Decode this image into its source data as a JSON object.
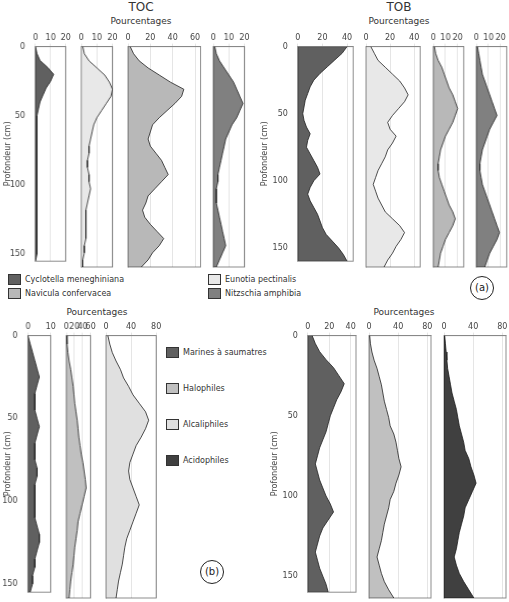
{
  "chart_data": [
    {
      "type": "area",
      "title": "TOC",
      "subtitle": "Pourcentages",
      "ylabel": "Profondeur (cm)",
      "y": [
        0,
        5,
        10,
        15,
        20,
        25,
        30,
        35,
        40,
        45,
        50,
        55,
        60,
        65,
        70,
        75,
        80,
        85,
        90,
        95,
        100,
        105,
        110,
        115,
        120,
        125,
        130,
        135,
        140,
        145,
        150,
        155
      ],
      "series": [
        {
          "name": "Cyclotella meneghiniana",
          "color": "#606060",
          "values": [
            0,
            1,
            3,
            8,
            12,
            10,
            7,
            5,
            3,
            2,
            1,
            1,
            1,
            1,
            1,
            1,
            1,
            1,
            1,
            1,
            1,
            1,
            1,
            1,
            1,
            1,
            1,
            1,
            1,
            1,
            1,
            0
          ]
        }
      ],
      "xlim": [
        0,
        20
      ],
      "xticks": [
        0,
        10,
        20
      ],
      "ylim": [
        155,
        0
      ],
      "yticks": [
        0,
        50,
        100,
        150
      ],
      "grid": true
    },
    {
      "type": "area",
      "y": [
        0,
        5,
        10,
        15,
        20,
        25,
        30,
        35,
        40,
        45,
        50,
        55,
        60,
        65,
        70,
        75,
        80,
        85,
        90,
        95,
        100,
        105,
        110,
        115,
        120,
        125,
        130,
        135,
        140,
        145,
        150,
        155
      ],
      "series": [
        {
          "name": "Eunotia pectinalis",
          "color": "#e8e8e8",
          "values": [
            1,
            2,
            5,
            10,
            15,
            18,
            20,
            19,
            16,
            13,
            10,
            8,
            7,
            6,
            5,
            5,
            4,
            4,
            5,
            5,
            6,
            5,
            4,
            3,
            3,
            3,
            3,
            3,
            2,
            2,
            1,
            1
          ]
        }
      ],
      "xlim": [
        0,
        20
      ],
      "xticks": [
        0,
        10,
        20
      ],
      "ylim": [
        155,
        0
      ],
      "tick_labels": "x",
      "grid": true
    },
    {
      "type": "area",
      "y": [
        0,
        5,
        10,
        15,
        20,
        25,
        30,
        35,
        40,
        45,
        50,
        55,
        60,
        65,
        70,
        75,
        80,
        85,
        90,
        95,
        100,
        105,
        110,
        115,
        120,
        125,
        130,
        135,
        140,
        145,
        150,
        155
      ],
      "series": [
        {
          "name": "Navicula confervacea",
          "color": "#b8b8b8",
          "values": [
            2,
            5,
            10,
            18,
            28,
            38,
            50,
            48,
            42,
            35,
            28,
            22,
            20,
            18,
            20,
            25,
            30,
            33,
            36,
            30,
            24,
            18,
            16,
            13,
            15,
            20,
            26,
            32,
            28,
            22,
            18,
            12
          ]
        }
      ],
      "xlim": [
        0,
        65
      ],
      "xticks": [
        0,
        20,
        40,
        60
      ],
      "ylim": [
        155,
        0
      ],
      "tick_labels": "x",
      "grid": true
    },
    {
      "type": "area",
      "y": [
        0,
        5,
        10,
        15,
        20,
        25,
        30,
        35,
        40,
        45,
        50,
        55,
        60,
        65,
        70,
        75,
        80,
        85,
        90,
        95,
        100,
        105,
        110,
        115,
        120,
        125,
        130,
        135,
        140,
        145,
        150,
        155
      ],
      "series": [
        {
          "name": "Nitzschia amphibia",
          "color": "#808080",
          "values": [
            1,
            2,
            4,
            7,
            10,
            13,
            15,
            17,
            19,
            17,
            15,
            12,
            10,
            8,
            7,
            6,
            5,
            4,
            3,
            3,
            2,
            2,
            2,
            3,
            4,
            5,
            6,
            7,
            8,
            6,
            4,
            2
          ]
        }
      ],
      "xlim": [
        0,
        20
      ],
      "xticks": [
        0,
        10,
        20
      ],
      "ylim": [
        155,
        0
      ],
      "tick_labels": "x",
      "grid": true
    },
    {
      "type": "area",
      "title": "TOB",
      "subtitle": "Pourcentages",
      "ylabel": "Profondeur (cm)",
      "y": [
        0,
        5,
        10,
        15,
        20,
        25,
        30,
        35,
        40,
        45,
        50,
        55,
        60,
        65,
        70,
        75,
        80,
        85,
        90,
        95,
        100,
        105,
        110,
        115,
        120,
        125,
        130,
        135,
        140,
        145,
        150,
        155,
        160
      ],
      "series": [
        {
          "name": "Cyclotella meneghiniana",
          "color": "#606060",
          "values": [
            40,
            36,
            30,
            24,
            18,
            13,
            10,
            8,
            6,
            5,
            4,
            5,
            7,
            10,
            8,
            7,
            10,
            13,
            16,
            18,
            13,
            10,
            8,
            10,
            13,
            16,
            18,
            20,
            23,
            28,
            33,
            37,
            40
          ]
        }
      ],
      "xlim": [
        0,
        45
      ],
      "xticks": [
        0,
        20,
        40
      ],
      "ylim": [
        160,
        0
      ],
      "yticks": [
        0,
        50,
        100,
        150
      ],
      "grid": true
    },
    {
      "type": "area",
      "y": [
        0,
        5,
        10,
        15,
        20,
        25,
        30,
        35,
        40,
        45,
        50,
        55,
        60,
        65,
        70,
        75,
        80,
        85,
        90,
        95,
        100,
        105,
        110,
        115,
        120,
        125,
        130,
        135,
        140,
        145,
        150,
        155,
        160
      ],
      "series": [
        {
          "name": "Eunotia pectinalis",
          "color": "#e8e8e8",
          "values": [
            4,
            7,
            10,
            16,
            22,
            28,
            32,
            35,
            32,
            27,
            22,
            18,
            20,
            25,
            22,
            18,
            16,
            13,
            10,
            8,
            6,
            8,
            10,
            13,
            16,
            22,
            28,
            32,
            29,
            25,
            22,
            18,
            15
          ]
        }
      ],
      "xlim": [
        0,
        45
      ],
      "xticks": [
        0,
        20,
        40
      ],
      "ylim": [
        160,
        0
      ],
      "tick_labels": "x",
      "grid": true
    },
    {
      "type": "area",
      "y": [
        0,
        5,
        10,
        15,
        20,
        25,
        30,
        35,
        40,
        45,
        50,
        55,
        60,
        65,
        70,
        75,
        80,
        85,
        90,
        95,
        100,
        105,
        110,
        115,
        120,
        125,
        130,
        135,
        140,
        145,
        150,
        155,
        160
      ],
      "series": [
        {
          "name": "Navicula confervacea",
          "color": "#b8b8b8",
          "values": [
            1,
            2,
            4,
            7,
            9,
            11,
            13,
            16,
            18,
            20,
            18,
            16,
            13,
            10,
            8,
            6,
            5,
            4,
            4,
            5,
            7,
            9,
            11,
            13,
            16,
            18,
            16,
            13,
            10,
            8,
            6,
            5,
            4
          ]
        }
      ],
      "xlim": [
        0,
        25
      ],
      "xticks": [
        0,
        10,
        20
      ],
      "ylim": [
        160,
        0
      ],
      "tick_labels": "x",
      "grid": true
    },
    {
      "type": "area",
      "annotations": [
        "(a)"
      ],
      "y": [
        0,
        5,
        10,
        15,
        20,
        25,
        30,
        35,
        40,
        45,
        50,
        55,
        60,
        65,
        70,
        75,
        80,
        85,
        90,
        95,
        100,
        105,
        110,
        115,
        120,
        125,
        130,
        135,
        140,
        145,
        150,
        155,
        160
      ],
      "series": [
        {
          "name": "Nitzschia amphibia",
          "color": "#808080",
          "values": [
            1,
            2,
            3,
            4,
            5,
            7,
            9,
            11,
            13,
            15,
            17,
            14,
            11,
            9,
            7,
            5,
            4,
            3,
            3,
            4,
            5,
            7,
            9,
            11,
            13,
            15,
            17,
            19,
            17,
            14,
            11,
            9,
            7
          ]
        }
      ],
      "xlim": [
        0,
        25
      ],
      "xticks": [
        0,
        10,
        20
      ],
      "ylim": [
        160,
        0
      ],
      "tick_labels": "x",
      "grid": true
    },
    {
      "type": "area",
      "subtitle": "Pourcentages",
      "ylabel": "Profondeur (cm)",
      "y": [
        0,
        5,
        10,
        15,
        20,
        25,
        30,
        35,
        40,
        45,
        50,
        55,
        60,
        65,
        70,
        75,
        80,
        85,
        90,
        95,
        100,
        105,
        110,
        115,
        120,
        125,
        130,
        135,
        140,
        145,
        150,
        155
      ],
      "series": [
        {
          "name": "Marines à saumatres",
          "color": "#606060",
          "values": [
            0,
            1,
            2,
            3,
            4,
            5,
            4,
            3,
            3,
            3,
            4,
            5,
            4,
            3,
            3,
            3,
            4,
            4,
            3,
            3,
            3,
            3,
            3,
            4,
            5,
            5,
            4,
            3,
            3,
            2,
            2,
            1
          ]
        }
      ],
      "xlim": [
        0,
        10
      ],
      "xticks": [
        0,
        10
      ],
      "ylim": [
        155,
        0
      ],
      "yticks": [
        0,
        50,
        100,
        150
      ],
      "grid": true
    },
    {
      "type": "area",
      "y": [
        0,
        5,
        10,
        15,
        20,
        25,
        30,
        35,
        40,
        45,
        50,
        55,
        60,
        65,
        70,
        75,
        80,
        85,
        90,
        95,
        100,
        105,
        110,
        115,
        120,
        125,
        130,
        135,
        140,
        145,
        150,
        155
      ],
      "series": [
        {
          "name": "Halophiles",
          "color": "#c0c0c0",
          "values": [
            1,
            2,
            4,
            7,
            11,
            14,
            17,
            19,
            21,
            24,
            27,
            29,
            31,
            34,
            37,
            41,
            44,
            47,
            49,
            44,
            39,
            34,
            29,
            27,
            24,
            21,
            19,
            17,
            14,
            11,
            9,
            7
          ]
        }
      ],
      "xlim": [
        0,
        60
      ],
      "xticks": [
        0,
        20,
        40,
        60
      ],
      "ylim": [
        155,
        0
      ],
      "tick_labels": "x",
      "grid": true
    },
    {
      "type": "area",
      "y": [
        0,
        5,
        10,
        15,
        20,
        25,
        30,
        35,
        40,
        45,
        50,
        55,
        60,
        65,
        70,
        75,
        80,
        85,
        90,
        95,
        100,
        105,
        110,
        115,
        120,
        125,
        130,
        135,
        140,
        145,
        150,
        155
      ],
      "series": [
        {
          "name": "Alcaliphiles",
          "color": "#e0e0e0",
          "values": [
            3,
            6,
            10,
            16,
            23,
            28,
            36,
            43,
            53,
            63,
            68,
            63,
            56,
            48,
            43,
            38,
            36,
            38,
            43,
            48,
            53,
            48,
            43,
            38,
            33,
            30,
            28,
            26,
            23,
            20,
            18,
            16
          ]
        }
      ],
      "xlim": [
        0,
        80
      ],
      "xticks": [
        0,
        40,
        80
      ],
      "ylim": [
        155,
        0
      ],
      "tick_labels": "x",
      "grid": true
    },
    {
      "type": "area",
      "subtitle": "Pourcentages",
      "ylabel": "Profondeur (cm)",
      "y": [
        0,
        5,
        10,
        15,
        20,
        25,
        30,
        35,
        40,
        45,
        50,
        55,
        60,
        65,
        70,
        75,
        80,
        85,
        90,
        95,
        100,
        105,
        110,
        115,
        120,
        125,
        130,
        135,
        140,
        145,
        150,
        155,
        160
      ],
      "series": [
        {
          "name": "Marines à saumatres",
          "color": "#606060",
          "values": [
            4,
            7,
            11,
            17,
            24,
            29,
            34,
            31,
            27,
            24,
            21,
            19,
            17,
            14,
            11,
            9,
            7,
            9,
            11,
            14,
            17,
            21,
            24,
            19,
            14,
            11,
            9,
            7,
            9,
            11,
            14,
            17,
            19
          ]
        }
      ],
      "xlim": [
        0,
        45
      ],
      "xticks": [
        0,
        20,
        40
      ],
      "ylim": [
        160,
        0
      ],
      "yticks": [
        0,
        50,
        100,
        150
      ],
      "grid": true
    },
    {
      "type": "area",
      "y": [
        0,
        5,
        10,
        15,
        20,
        25,
        30,
        35,
        40,
        45,
        50,
        55,
        60,
        65,
        70,
        75,
        80,
        85,
        90,
        95,
        100,
        105,
        110,
        115,
        120,
        125,
        130,
        135,
        140,
        145,
        150,
        155,
        160
      ],
      "series": [
        {
          "name": "Halophiles",
          "color": "#c0c0c0",
          "values": [
            1,
            2,
            4,
            7,
            11,
            14,
            17,
            19,
            21,
            24,
            27,
            29,
            34,
            37,
            39,
            41,
            44,
            41,
            37,
            34,
            29,
            27,
            24,
            21,
            19,
            17,
            14,
            11,
            14,
            17,
            21,
            27,
            34
          ]
        }
      ],
      "xlim": [
        0,
        85
      ],
      "xticks": [
        0,
        40,
        80
      ],
      "ylim": [
        160,
        0
      ],
      "tick_labels": "x",
      "grid": true
    },
    {
      "type": "area",
      "annotations": [
        "(b)"
      ],
      "y": [
        0,
        5,
        10,
        15,
        20,
        25,
        30,
        35,
        40,
        45,
        50,
        55,
        60,
        65,
        70,
        75,
        80,
        85,
        90,
        95,
        100,
        105,
        110,
        115,
        120,
        125,
        130,
        135,
        140,
        145,
        150,
        155,
        160
      ],
      "series": [
        {
          "name": "Acidophiles",
          "color": "#404040",
          "values": [
            1,
            2,
            3,
            4,
            5,
            7,
            9,
            11,
            14,
            17,
            19,
            21,
            24,
            27,
            29,
            34,
            37,
            41,
            44,
            39,
            34,
            29,
            27,
            24,
            21,
            19,
            17,
            14,
            17,
            21,
            27,
            34,
            41
          ]
        }
      ],
      "xlim": [
        0,
        85
      ],
      "xticks": [
        0,
        40,
        80
      ],
      "ylim": [
        160,
        0
      ],
      "tick_labels": "x",
      "grid": true
    }
  ]
}
